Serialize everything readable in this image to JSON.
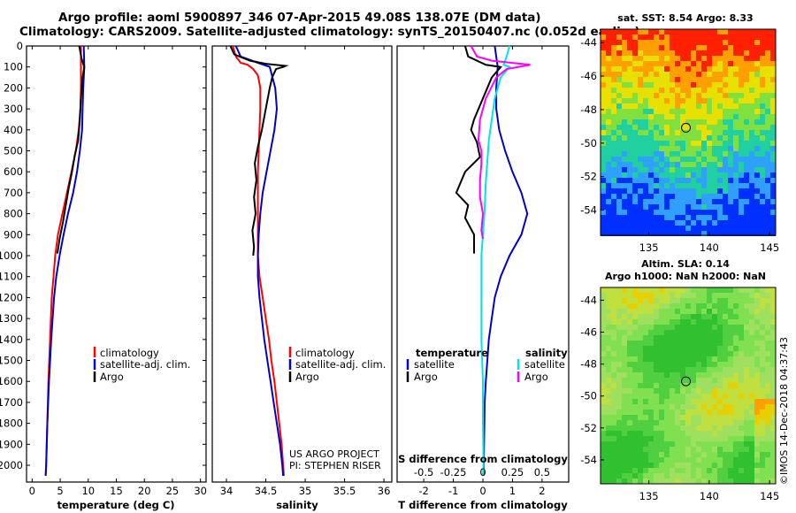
{
  "header": {
    "line1": "Argo profile: aoml 5900897_346 07-Apr-2015 49.08S 138.07E (DM data)",
    "line2": "Climatology: CARS2009. Satellite-adjusted climatology: synTS_20150407.nc (0.052d earlier)"
  },
  "colors": {
    "argo": "#000000",
    "climatology": "#ff0000",
    "satellite": "#0000cc",
    "satellite_salinity": "#00e5e5",
    "argo_salinity": "#ff00ff"
  },
  "chart_data": [
    {
      "type": "line",
      "id": "temperature",
      "xlabel": "temperature (deg C)",
      "ylabel": "",
      "xlim": [
        -1,
        31
      ],
      "ylim": [
        2080,
        0
      ],
      "xticks": [
        "0",
        "5",
        "10",
        "15",
        "20",
        "25",
        "30"
      ],
      "yticks": [
        "0",
        "100",
        "200",
        "300",
        "400",
        "500",
        "600",
        "700",
        "800",
        "900",
        "1000",
        "1100",
        "1200",
        "1300",
        "1400",
        "1500",
        "1600",
        "1700",
        "1800",
        "1900",
        "2000"
      ],
      "legend": [
        "climatology",
        "satellite-adj. clim.",
        "Argo"
      ],
      "series": [
        {
          "name": "climatology",
          "color": "#ff0000",
          "points": [
            [
              8.7,
              0
            ],
            [
              8.7,
              100
            ],
            [
              8.7,
              200
            ],
            [
              8.6,
              300
            ],
            [
              8.3,
              400
            ],
            [
              7.8,
              500
            ],
            [
              7.0,
              600
            ],
            [
              6.2,
              700
            ],
            [
              5.4,
              800
            ],
            [
              4.6,
              900
            ],
            [
              4.1,
              1000
            ],
            [
              3.8,
              1100
            ],
            [
              3.5,
              1200
            ],
            [
              3.2,
              1400
            ],
            [
              2.9,
              1600
            ],
            [
              2.7,
              1800
            ],
            [
              2.5,
              2000
            ],
            [
              2.4,
              2050
            ]
          ]
        },
        {
          "name": "satellite-adj. clim.",
          "color": "#0000cc",
          "points": [
            [
              9.2,
              0
            ],
            [
              9.3,
              100
            ],
            [
              9.1,
              200
            ],
            [
              9.0,
              300
            ],
            [
              8.9,
              400
            ],
            [
              8.5,
              500
            ],
            [
              8.0,
              600
            ],
            [
              7.3,
              700
            ],
            [
              6.4,
              800
            ],
            [
              5.6,
              900
            ],
            [
              4.9,
              1000
            ],
            [
              4.3,
              1100
            ],
            [
              3.9,
              1200
            ],
            [
              3.4,
              1400
            ],
            [
              3.0,
              1600
            ],
            [
              2.7,
              1800
            ],
            [
              2.5,
              2000
            ],
            [
              2.4,
              2050
            ]
          ]
        },
        {
          "name": "Argo",
          "color": "#000000",
          "points": [
            [
              8.4,
              0
            ],
            [
              8.8,
              60
            ],
            [
              9.3,
              100
            ],
            [
              9.0,
              150
            ],
            [
              8.7,
              250
            ],
            [
              8.5,
              350
            ],
            [
              8.2,
              450
            ],
            [
              7.6,
              520
            ],
            [
              7.1,
              600
            ],
            [
              6.5,
              680
            ],
            [
              6.0,
              760
            ],
            [
              5.5,
              840
            ],
            [
              4.9,
              920
            ],
            [
              4.5,
              990
            ]
          ]
        }
      ]
    },
    {
      "type": "line",
      "id": "salinity",
      "xlabel": "salinity",
      "ylabel": "",
      "xlim": [
        33.82,
        36.1
      ],
      "ylim": [
        2080,
        0
      ],
      "xticks": [
        "34",
        "34.5",
        "35",
        "35.5",
        "36"
      ],
      "legend": [
        "climatology",
        "satellite-adj. clim.",
        "Argo"
      ],
      "annotations": [
        "US ARGO PROJECT",
        "PI: STEPHEN RISER"
      ],
      "series": [
        {
          "name": "climatology",
          "color": "#ff0000",
          "points": [
            [
              34.08,
              0
            ],
            [
              34.12,
              50
            ],
            [
              34.18,
              80
            ],
            [
              34.27,
              90
            ],
            [
              34.34,
              110
            ],
            [
              34.4,
              140
            ],
            [
              34.43,
              200
            ],
            [
              34.43,
              300
            ],
            [
              34.42,
              400
            ],
            [
              34.41,
              500
            ],
            [
              34.4,
              600
            ],
            [
              34.4,
              700
            ],
            [
              34.4,
              800
            ],
            [
              34.4,
              900
            ],
            [
              34.4,
              1000
            ],
            [
              34.42,
              1100
            ],
            [
              34.46,
              1200
            ],
            [
              34.5,
              1300
            ],
            [
              34.54,
              1400
            ],
            [
              34.57,
              1500
            ],
            [
              34.61,
              1600
            ],
            [
              34.64,
              1700
            ],
            [
              34.67,
              1800
            ],
            [
              34.7,
              1900
            ],
            [
              34.72,
              2000
            ],
            [
              34.73,
              2050
            ]
          ]
        },
        {
          "name": "satellite-adj. clim.",
          "color": "#0000cc",
          "points": [
            [
              34.12,
              0
            ],
            [
              34.18,
              50
            ],
            [
              34.4,
              80
            ],
            [
              34.55,
              100
            ],
            [
              34.62,
              200
            ],
            [
              34.64,
              300
            ],
            [
              34.61,
              400
            ],
            [
              34.56,
              500
            ],
            [
              34.51,
              600
            ],
            [
              34.46,
              700
            ],
            [
              34.43,
              800
            ],
            [
              34.41,
              900
            ],
            [
              34.4,
              1000
            ],
            [
              34.4,
              1100
            ],
            [
              34.42,
              1200
            ],
            [
              34.45,
              1300
            ],
            [
              34.48,
              1400
            ],
            [
              34.52,
              1500
            ],
            [
              34.56,
              1600
            ],
            [
              34.6,
              1700
            ],
            [
              34.64,
              1800
            ],
            [
              34.68,
              1900
            ],
            [
              34.71,
              2000
            ],
            [
              34.72,
              2050
            ]
          ]
        },
        {
          "name": "Argo",
          "color": "#000000",
          "points": [
            [
              34.05,
              0
            ],
            [
              34.1,
              40
            ],
            [
              34.3,
              70
            ],
            [
              34.5,
              85
            ],
            [
              34.75,
              95
            ],
            [
              34.72,
              100
            ],
            [
              34.63,
              110
            ],
            [
              34.58,
              150
            ],
            [
              34.55,
              200
            ],
            [
              34.5,
              300
            ],
            [
              34.45,
              400
            ],
            [
              34.4,
              480
            ],
            [
              34.36,
              560
            ],
            [
              34.38,
              640
            ],
            [
              34.35,
              720
            ],
            [
              34.37,
              800
            ],
            [
              34.33,
              880
            ],
            [
              34.35,
              960
            ],
            [
              34.34,
              1000
            ]
          ]
        }
      ]
    },
    {
      "type": "line",
      "id": "differences",
      "xlabel": "T difference from climatology",
      "xlabel2": "S difference from climatology",
      "ylabel": "",
      "xlim": [
        -2.9,
        2.9
      ],
      "ylim": [
        2080,
        0
      ],
      "xticks": [
        "-2",
        "-1",
        "0",
        "1",
        "2"
      ],
      "xticks2": [
        "-0.5",
        "-0.25",
        "0",
        "0.25",
        "0.5"
      ],
      "legend_left_title": "temperature",
      "legend_right_title": "salinity",
      "legend": [
        "satellite",
        "Argo",
        "satellite",
        "Argo"
      ],
      "series": [
        {
          "name": "temperature satellite",
          "color": "#0000cc",
          "points": [
            [
              0.4,
              0
            ],
            [
              0.5,
              100
            ],
            [
              0.45,
              200
            ],
            [
              0.45,
              300
            ],
            [
              0.55,
              400
            ],
            [
              0.75,
              500
            ],
            [
              1.0,
              600
            ],
            [
              1.3,
              700
            ],
            [
              1.5,
              800
            ],
            [
              1.3,
              900
            ],
            [
              0.9,
              1000
            ],
            [
              0.6,
              1100
            ],
            [
              0.4,
              1200
            ],
            [
              0.3,
              1300
            ],
            [
              0.2,
              1400
            ],
            [
              0.15,
              1500
            ],
            [
              0.1,
              1600
            ],
            [
              0.06,
              1700
            ],
            [
              0.05,
              1800
            ],
            [
              0.04,
              1900
            ],
            [
              0.03,
              2000
            ],
            [
              0.02,
              2050
            ]
          ]
        },
        {
          "name": "temperature Argo",
          "color": "#000000",
          "points": [
            [
              -0.6,
              0
            ],
            [
              -0.5,
              50
            ],
            [
              0.1,
              90
            ],
            [
              0.6,
              100
            ],
            [
              0.3,
              150
            ],
            [
              0,
              250
            ],
            [
              -0.3,
              350
            ],
            [
              -0.4,
              400
            ],
            [
              -0.2,
              460
            ],
            [
              -0.1,
              530
            ],
            [
              -0.6,
              600
            ],
            [
              -0.9,
              700
            ],
            [
              -0.5,
              760
            ],
            [
              -0.6,
              820
            ],
            [
              -0.3,
              900
            ],
            [
              -0.3,
              990
            ]
          ]
        },
        {
          "name": "salinity satellite",
          "color": "#00e5e5",
          "points": [
            [
              0.9,
              0
            ],
            [
              0.8,
              50
            ],
            [
              0.7,
              90
            ],
            [
              0.9,
              100
            ],
            [
              0.6,
              150
            ],
            [
              0.4,
              250
            ],
            [
              0.3,
              350
            ],
            [
              0.2,
              450
            ],
            [
              0.15,
              550
            ],
            [
              0.1,
              650
            ],
            [
              0.05,
              800
            ],
            [
              -0.05,
              1000
            ],
            [
              -0.05,
              1200
            ],
            [
              -0.05,
              1400
            ],
            [
              0,
              1600
            ],
            [
              0,
              1800
            ],
            [
              0.02,
              2000
            ],
            [
              0,
              2050
            ]
          ]
        },
        {
          "name": "salinity Argo",
          "color": "#ff00ff",
          "points": [
            [
              -0.4,
              0
            ],
            [
              -0.2,
              50
            ],
            [
              0.3,
              70
            ],
            [
              1.6,
              90
            ],
            [
              0.8,
              110
            ],
            [
              0.45,
              150
            ],
            [
              0.1,
              250
            ],
            [
              -0.1,
              350
            ],
            [
              -0.15,
              450
            ],
            [
              -0.05,
              500
            ],
            [
              -0.05,
              560
            ],
            [
              -0.1,
              640
            ],
            [
              -0.1,
              720
            ],
            [
              0,
              800
            ],
            [
              -0.05,
              880
            ],
            [
              0,
              920
            ]
          ]
        }
      ]
    }
  ],
  "map_top": {
    "title": "sat. SST: 8.54  Argo: 8.33",
    "xticks": [
      "135",
      "140",
      "145"
    ],
    "yticks": [
      "-44",
      "-46",
      "-48",
      "-50",
      "-52",
      "-54"
    ],
    "marker": {
      "lon": 138.07,
      "lat": -49.08
    },
    "bands": [
      "#ff2000",
      "#ffa000",
      "#e8e000",
      "#80e040",
      "#20d0a0",
      "#30a0ff",
      "#0030ff"
    ]
  },
  "map_bottom": {
    "title_line1": "Altim. SLA: 0.14",
    "title_line2": "Argo h1000: NaN h2000: NaN",
    "xticks": [
      "135",
      "140",
      "145"
    ],
    "yticks": [
      "-44",
      "-46",
      "-48",
      "-50",
      "-52",
      "-54"
    ],
    "marker": {
      "lon": 138.07,
      "lat": -49.08
    },
    "stamp": "©IMOS 14-Dec-2018 04:37:43"
  }
}
